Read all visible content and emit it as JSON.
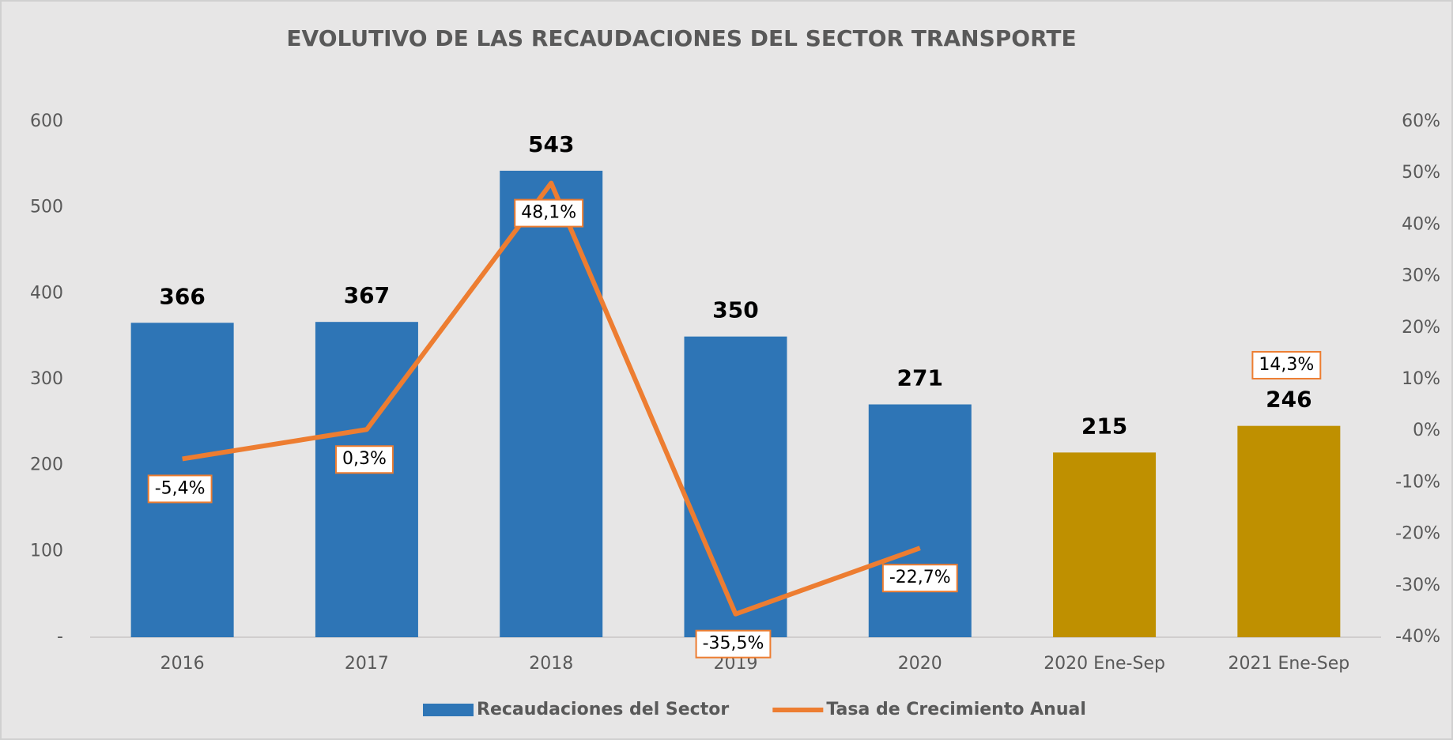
{
  "chart_data": {
    "type": "bar-line",
    "title": "EVOLUTIVO DE LAS RECAUDACIONES DEL SECTOR TRANSPORTE",
    "categories": [
      "2016",
      "2017",
      "2018",
      "2019",
      "2020",
      "2020 Ene-Sep",
      "2021 Ene-Sep"
    ],
    "series": [
      {
        "name": "Recaudaciones del Sector",
        "type": "bar",
        "colors": [
          "#2e75b6",
          "#2e75b6",
          "#2e75b6",
          "#2e75b6",
          "#2e75b6",
          "#bf9000",
          "#bf9000"
        ],
        "values": [
          366,
          367,
          543,
          350,
          271,
          215,
          246
        ]
      },
      {
        "name": "Tasa de Crecimiento Anual",
        "type": "line",
        "axis": "y2",
        "color": "#ed7d31",
        "values": [
          -5.4,
          0.3,
          48.1,
          -35.5,
          -22.7,
          null,
          14.3
        ],
        "value_labels": [
          "-5,4%",
          "0,3%",
          "48,1%",
          "-35,5%",
          "-22,7%",
          null,
          "14,3%"
        ]
      }
    ],
    "ylim": [
      0,
      600
    ],
    "yticks": [
      {
        "value": 0,
        "label": "-"
      },
      100,
      200,
      300,
      400,
      500,
      600
    ],
    "y2lim": [
      -40,
      60
    ],
    "y2ticks": [
      {
        "value": -40,
        "label": "-40%"
      },
      {
        "value": -30,
        "label": "-30%"
      },
      {
        "value": -20,
        "label": "-20%"
      },
      {
        "value": -10,
        "label": "-10%"
      },
      {
        "value": 0,
        "label": "0%"
      },
      {
        "value": 10,
        "label": "10%"
      },
      {
        "value": 20,
        "label": "20%"
      },
      {
        "value": 30,
        "label": "30%"
      },
      {
        "value": 40,
        "label": "40%"
      },
      {
        "value": 50,
        "label": "50%"
      },
      {
        "value": 60,
        "label": "60%"
      }
    ],
    "legend": "bottom"
  }
}
